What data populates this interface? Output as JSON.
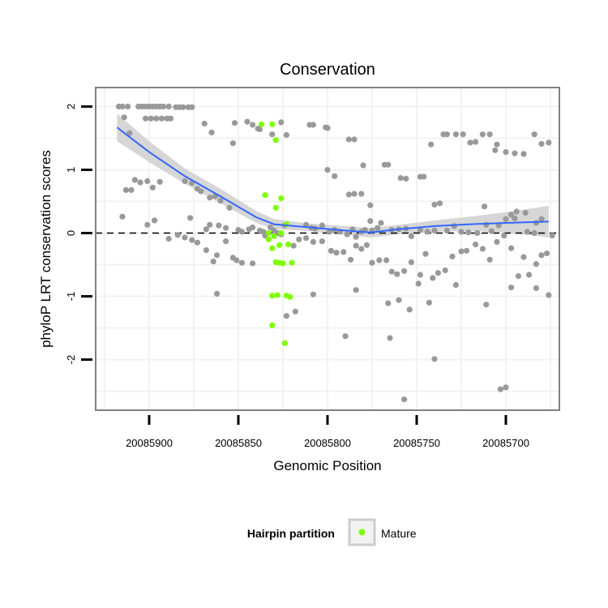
{
  "chart_data": {
    "type": "scatter",
    "title": "Conservation",
    "xlabel": "Genomic Position",
    "ylabel": "phyloP LRT conservation scores",
    "x_reversed": true,
    "xlim": [
      20085930,
      20085670
    ],
    "ylim": [
      -2.8,
      2.3
    ],
    "x_ticks": [
      20085900,
      20085850,
      20085800,
      20085750,
      20085700
    ],
    "x_tick_labels": [
      "20085900",
      "20085850",
      "20085800",
      "20085750",
      "20085700"
    ],
    "y_ticks": [
      -2,
      -1,
      0,
      1,
      2
    ],
    "y_tick_labels": [
      "-2",
      "-1",
      "0",
      "1",
      "2"
    ],
    "reference_line": 0,
    "grid": true,
    "colors": {
      "background": "#ffffff",
      "panel_border": "#808080",
      "grid": "#f2f2f2",
      "other_points": "#999999",
      "mature_points": "#7fff00",
      "smooth_line": "#3366ff",
      "ribbon": "#cccccc"
    },
    "legend": {
      "title": "Hairpin partition",
      "entries": [
        "Mature"
      ],
      "placement": "bottom"
    },
    "series": [
      {
        "name": "",
        "color": "#999999",
        "points": [
          [
            20085917,
            2.0
          ],
          [
            20085915,
            2.0
          ],
          [
            20085912,
            2.0
          ],
          [
            20085906,
            2.0
          ],
          [
            20085904,
            2.0
          ],
          [
            20085902,
            2.0
          ],
          [
            20085900,
            2.0
          ],
          [
            20085898,
            2.0
          ],
          [
            20085896,
            2.0
          ],
          [
            20085894,
            2.0
          ],
          [
            20085892,
            2.0
          ],
          [
            20085889,
            2.0
          ],
          [
            20085885,
            1.99
          ],
          [
            20085883,
            1.99
          ],
          [
            20085881,
            1.99
          ],
          [
            20085878,
            1.99
          ],
          [
            20085876,
            1.99
          ],
          [
            20085914,
            1.83
          ],
          [
            20085902,
            1.81
          ],
          [
            20085899,
            1.81
          ],
          [
            20085896,
            1.81
          ],
          [
            20085893,
            1.81
          ],
          [
            20085890,
            1.81
          ],
          [
            20085888,
            1.81
          ],
          [
            20085911,
            1.58
          ],
          [
            20085869,
            1.73
          ],
          [
            20085865,
            1.59
          ],
          [
            20085852,
            1.74
          ],
          [
            20085845,
            1.76
          ],
          [
            20085842,
            1.71
          ],
          [
            20085839,
            1.65
          ],
          [
            20085838,
            1.64
          ],
          [
            20085831,
            1.56
          ],
          [
            20085823,
            1.55
          ],
          [
            20085826,
            1.75
          ],
          [
            20085810,
            1.71
          ],
          [
            20085808,
            1.71
          ],
          [
            20085801,
            1.67
          ],
          [
            20085800,
            1.66
          ],
          [
            20085853,
            1.42
          ],
          [
            20085788,
            1.48
          ],
          [
            20085785,
            1.48
          ],
          [
            20085780,
            1.07
          ],
          [
            20085768,
            1.08
          ],
          [
            20085766,
            1.08
          ],
          [
            20085759,
            0.87
          ],
          [
            20085756,
            0.86
          ],
          [
            20085748,
            0.89
          ],
          [
            20085746,
            0.89
          ],
          [
            20085742,
            1.4
          ],
          [
            20085735,
            1.56
          ],
          [
            20085733,
            1.56
          ],
          [
            20085728,
            1.56
          ],
          [
            20085724,
            1.56
          ],
          [
            20085720,
            1.43
          ],
          [
            20085717,
            1.44
          ],
          [
            20085713,
            1.56
          ],
          [
            20085709,
            1.56
          ],
          [
            20085705,
            1.4
          ],
          [
            20085700,
            1.28
          ],
          [
            20085695,
            1.26
          ],
          [
            20085690,
            1.25
          ],
          [
            20085684,
            1.56
          ],
          [
            20085680,
            1.41
          ],
          [
            20085676,
            1.43
          ],
          [
            20085706,
            1.31
          ],
          [
            20085913,
            0.68
          ],
          [
            20085910,
            0.68
          ],
          [
            20085908,
            0.84
          ],
          [
            20085905,
            0.8
          ],
          [
            20085901,
            0.82
          ],
          [
            20085898,
            0.72
          ],
          [
            20085894,
            0.81
          ],
          [
            20085880,
            0.82
          ],
          [
            20085876,
            0.79
          ],
          [
            20085873,
            0.7
          ],
          [
            20085871,
            0.66
          ],
          [
            20085866,
            0.56
          ],
          [
            20085863,
            0.58
          ],
          [
            20085860,
            0.51
          ],
          [
            20085855,
            0.4
          ],
          [
            20085800,
            1.0
          ],
          [
            20085796,
            0.9
          ],
          [
            20085788,
            0.61
          ],
          [
            20085785,
            0.62
          ],
          [
            20085781,
            0.62
          ],
          [
            20085776,
            0.44
          ],
          [
            20085740,
            0.45
          ],
          [
            20085737,
            0.47
          ],
          [
            20085712,
            0.42
          ],
          [
            20085694,
            0.34
          ],
          [
            20085689,
            0.32
          ],
          [
            20085683,
            0.16
          ],
          [
            20085680,
            0.22
          ],
          [
            20085915,
            0.26
          ],
          [
            20085901,
            0.13
          ],
          [
            20085897,
            0.2
          ],
          [
            20085877,
            0.24
          ],
          [
            20085868,
            0.06
          ],
          [
            20085866,
            0.13
          ],
          [
            20085861,
            0.12
          ],
          [
            20085857,
            0.08
          ],
          [
            20085850,
            0.05
          ],
          [
            20085848,
            0.02
          ],
          [
            20085844,
            0.06
          ],
          [
            20085842,
            0.09
          ],
          [
            20085838,
            0.04
          ],
          [
            20085836,
            0.02
          ],
          [
            20085832,
            0.09
          ],
          [
            20085830,
            0.04
          ],
          [
            20085828,
            0.0
          ],
          [
            20085824,
            0.12
          ],
          [
            20085812,
            0.13
          ],
          [
            20085809,
            0.08
          ],
          [
            20085807,
            0.07
          ],
          [
            20085803,
            0.12
          ],
          [
            20085799,
            0.02
          ],
          [
            20085796,
            0.05
          ],
          [
            20085793,
            0.02
          ],
          [
            20085789,
            -0.02
          ],
          [
            20085786,
            0.06
          ],
          [
            20085784,
            -0.06
          ],
          [
            20085781,
            0.02
          ],
          [
            20085779,
            0.05
          ],
          [
            20085776,
            0.19
          ],
          [
            20085775,
            0.04
          ],
          [
            20085772,
            0.08
          ],
          [
            20085770,
            0.16
          ],
          [
            20085764,
            0.05
          ],
          [
            20085760,
            0.06
          ],
          [
            20085756,
            0.07
          ],
          [
            20085753,
            -0.05
          ],
          [
            20085748,
            0.05
          ],
          [
            20085744,
            0.02
          ],
          [
            20085740,
            0.04
          ],
          [
            20085733,
            0.04
          ],
          [
            20085729,
            0.11
          ],
          [
            20085725,
            0.02
          ],
          [
            20085721,
            0.01
          ],
          [
            20085716,
            0.0
          ],
          [
            20085711,
            0.13
          ],
          [
            20085708,
            0.03
          ],
          [
            20085704,
            0.12
          ],
          [
            20085700,
            0.22
          ],
          [
            20085697,
            0.29
          ],
          [
            20085695,
            0.23
          ],
          [
            20085688,
            0.02
          ],
          [
            20085684,
            0.0
          ],
          [
            20085889,
            -0.09
          ],
          [
            20085884,
            -0.03
          ],
          [
            20085880,
            -0.07
          ],
          [
            20085876,
            -0.11
          ],
          [
            20085873,
            -0.15
          ],
          [
            20085868,
            -0.27
          ],
          [
            20085864,
            -0.45
          ],
          [
            20085862,
            -0.35
          ],
          [
            20085857,
            -0.13
          ],
          [
            20085853,
            -0.39
          ],
          [
            20085851,
            -0.43
          ],
          [
            20085848,
            -0.47
          ],
          [
            20085842,
            -0.48
          ],
          [
            20085835,
            -0.04
          ],
          [
            20085826,
            -0.02
          ],
          [
            20085819,
            -0.2
          ],
          [
            20085816,
            -0.1
          ],
          [
            20085812,
            -0.08
          ],
          [
            20085808,
            -0.14
          ],
          [
            20085803,
            -0.13
          ],
          [
            20085798,
            -0.28
          ],
          [
            20085795,
            -0.31
          ],
          [
            20085791,
            -0.3
          ],
          [
            20085787,
            -0.42
          ],
          [
            20085784,
            -0.2
          ],
          [
            20085781,
            -0.25
          ],
          [
            20085778,
            -0.19
          ],
          [
            20085775,
            -0.47
          ],
          [
            20085771,
            -0.43
          ],
          [
            20085767,
            -0.43
          ],
          [
            20085764,
            -0.61
          ],
          [
            20085761,
            -0.65
          ],
          [
            20085757,
            -0.6
          ],
          [
            20085753,
            -0.46
          ],
          [
            20085748,
            -0.66
          ],
          [
            20085745,
            -0.33
          ],
          [
            20085741,
            -0.71
          ],
          [
            20085738,
            -0.63
          ],
          [
            20085734,
            -0.59
          ],
          [
            20085730,
            -0.37
          ],
          [
            20085725,
            -0.29
          ],
          [
            20085722,
            -0.28
          ],
          [
            20085717,
            -0.18
          ],
          [
            20085713,
            -0.25
          ],
          [
            20085709,
            -0.42
          ],
          [
            20085705,
            -0.14
          ],
          [
            20085701,
            -0.04
          ],
          [
            20085697,
            -0.24
          ],
          [
            20085693,
            -0.68
          ],
          [
            20085690,
            -0.38
          ],
          [
            20085687,
            -0.66
          ],
          [
            20085683,
            -0.49
          ],
          [
            20085680,
            -0.35
          ],
          [
            20085677,
            -0.32
          ],
          [
            20085674,
            -0.04
          ],
          [
            20085862,
            -0.96
          ],
          [
            20085823,
            -1.31
          ],
          [
            20085818,
            -1.24
          ],
          [
            20085808,
            -0.97
          ],
          [
            20085790,
            -1.63
          ],
          [
            20085784,
            -0.9
          ],
          [
            20085766,
            -1.11
          ],
          [
            20085760,
            -1.06
          ],
          [
            20085754,
            -1.21
          ],
          [
            20085749,
            -0.8
          ],
          [
            20085743,
            -1.1
          ],
          [
            20085728,
            -0.82
          ],
          [
            20085711,
            -1.13
          ],
          [
            20085697,
            -0.86
          ],
          [
            20085683,
            -0.87
          ],
          [
            20085676,
            -0.98
          ],
          [
            20085765,
            -1.66
          ],
          [
            20085740,
            -1.99
          ],
          [
            20085757,
            -2.63
          ],
          [
            20085703,
            -2.47
          ],
          [
            20085700,
            -2.44
          ]
        ]
      },
      {
        "name": "Mature",
        "color": "#7fff00",
        "points": [
          [
            20085837,
            1.72
          ],
          [
            20085831,
            1.72
          ],
          [
            20085829,
            1.47
          ],
          [
            20085835,
            0.6
          ],
          [
            20085826,
            0.55
          ],
          [
            20085829,
            0.4
          ],
          [
            20085823,
            0.14
          ],
          [
            20085826,
            0.0
          ],
          [
            20085833,
            0.0
          ],
          [
            20085830,
            -0.05
          ],
          [
            20085833,
            -0.1
          ],
          [
            20085827,
            -0.19
          ],
          [
            20085822,
            -0.18
          ],
          [
            20085831,
            -0.24
          ],
          [
            20085829,
            -0.46
          ],
          [
            20085827,
            -0.47
          ],
          [
            20085825,
            -0.48
          ],
          [
            20085820,
            -0.47
          ],
          [
            20085831,
            -0.99
          ],
          [
            20085828,
            -0.98
          ],
          [
            20085823,
            -0.99
          ],
          [
            20085821,
            -1.01
          ],
          [
            20085831,
            -1.46
          ],
          [
            20085824,
            -1.74
          ]
        ]
      }
    ],
    "smooth": {
      "method": "loess",
      "x": [
        20085918,
        20085900,
        20085880,
        20085860,
        20085840,
        20085830,
        20085810,
        20085790,
        20085776,
        20085760,
        20085740,
        20085720,
        20085700,
        20085676
      ],
      "y": [
        1.67,
        1.28,
        0.9,
        0.58,
        0.25,
        0.14,
        0.09,
        0.04,
        0.01,
        0.06,
        0.11,
        0.14,
        0.16,
        0.18
      ],
      "lower": [
        1.45,
        1.12,
        0.78,
        0.47,
        0.16,
        0.06,
        0.03,
        -0.03,
        -0.07,
        -0.02,
        0.02,
        0.03,
        0.01,
        -0.07
      ],
      "upper": [
        1.89,
        1.45,
        1.02,
        0.7,
        0.35,
        0.22,
        0.15,
        0.11,
        0.08,
        0.13,
        0.2,
        0.26,
        0.33,
        0.43
      ]
    }
  }
}
